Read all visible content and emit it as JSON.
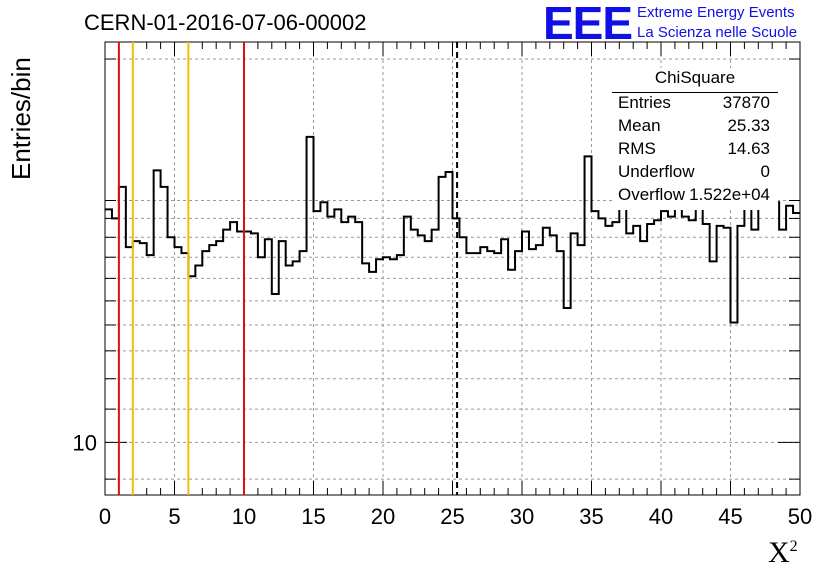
{
  "header": {
    "title": "CERN-01-2016-07-06-00002",
    "logo_text": "EEE",
    "logo_line1": "Extreme Energy Events",
    "logo_line2": "La Scienza nelle Scuole"
  },
  "stats_box": {
    "title": "ChiSquare",
    "rows": [
      {
        "key": "Entries",
        "value": "37870"
      },
      {
        "key": "Mean",
        "value": "25.33"
      },
      {
        "key": "RMS",
        "value": "14.63"
      },
      {
        "key": "Underflow",
        "value": "0"
      },
      {
        "key": "Overflow",
        "value": "1.522e+04"
      }
    ]
  },
  "colors": {
    "histogram": "#000000",
    "red_line": "#e01010",
    "yellow_line": "#f0c000",
    "dashed_line": "#000000",
    "grid": "#999999",
    "logo": "#1010e6"
  },
  "chart_data": {
    "type": "histogram",
    "xlabel": "X",
    "xlabel_superscript": "2",
    "ylabel": "Entries/bin",
    "xlim": [
      0,
      50
    ],
    "ylim": [
      8.6,
      31.5
    ],
    "y_scale": "log",
    "grid": true,
    "bin_width": 0.5,
    "x_ticks": [
      "0",
      "5",
      "10",
      "15",
      "20",
      "25",
      "30",
      "35",
      "40",
      "45",
      "50"
    ],
    "y_ticks": [
      "10"
    ],
    "values": [
      19.5,
      19.0,
      20.8,
      17.5,
      17.8,
      17.7,
      17.1,
      21.8,
      20.8,
      18.0,
      17.5,
      17.2,
      16.1,
      16.6,
      17.3,
      17.6,
      17.8,
      18.4,
      18.8,
      18.3,
      18.3,
      18.2,
      17.0,
      17.9,
      15.3,
      17.8,
      16.6,
      16.8,
      17.3,
      24.0,
      19.4,
      19.9,
      19.1,
      19.5,
      18.8,
      19.1,
      18.8,
      16.7,
      16.3,
      16.9,
      17.0,
      16.9,
      17.1,
      19.1,
      18.4,
      18.1,
      17.8,
      18.4,
      21.4,
      21.7,
      19.0,
      18.0,
      17.2,
      17.2,
      17.5,
      17.3,
      17.2,
      17.9,
      16.4,
      17.3,
      18.3,
      17.4,
      17.6,
      18.5,
      18.1,
      17.3,
      14.7,
      18.2,
      17.6,
      22.7,
      19.4,
      19.0,
      18.6,
      18.8,
      19.6,
      18.2,
      18.6,
      17.8,
      18.7,
      18.9,
      19.4,
      19.1,
      19.8,
      19.1,
      18.9,
      20.2,
      18.7,
      16.8,
      18.6,
      18.5,
      14.1,
      18.6,
      20.0,
      18.4,
      21.2,
      19.6,
      19.9,
      18.4,
      19.7,
      19.3
    ],
    "vertical_lines": [
      {
        "x": 1,
        "style": "solid",
        "color": "red"
      },
      {
        "x": 2,
        "style": "solid",
        "color": "yellow"
      },
      {
        "x": 6,
        "style": "solid",
        "color": "yellow"
      },
      {
        "x": 10,
        "style": "solid",
        "color": "red"
      },
      {
        "x": 25.33,
        "style": "dashed",
        "color": "black"
      }
    ]
  }
}
